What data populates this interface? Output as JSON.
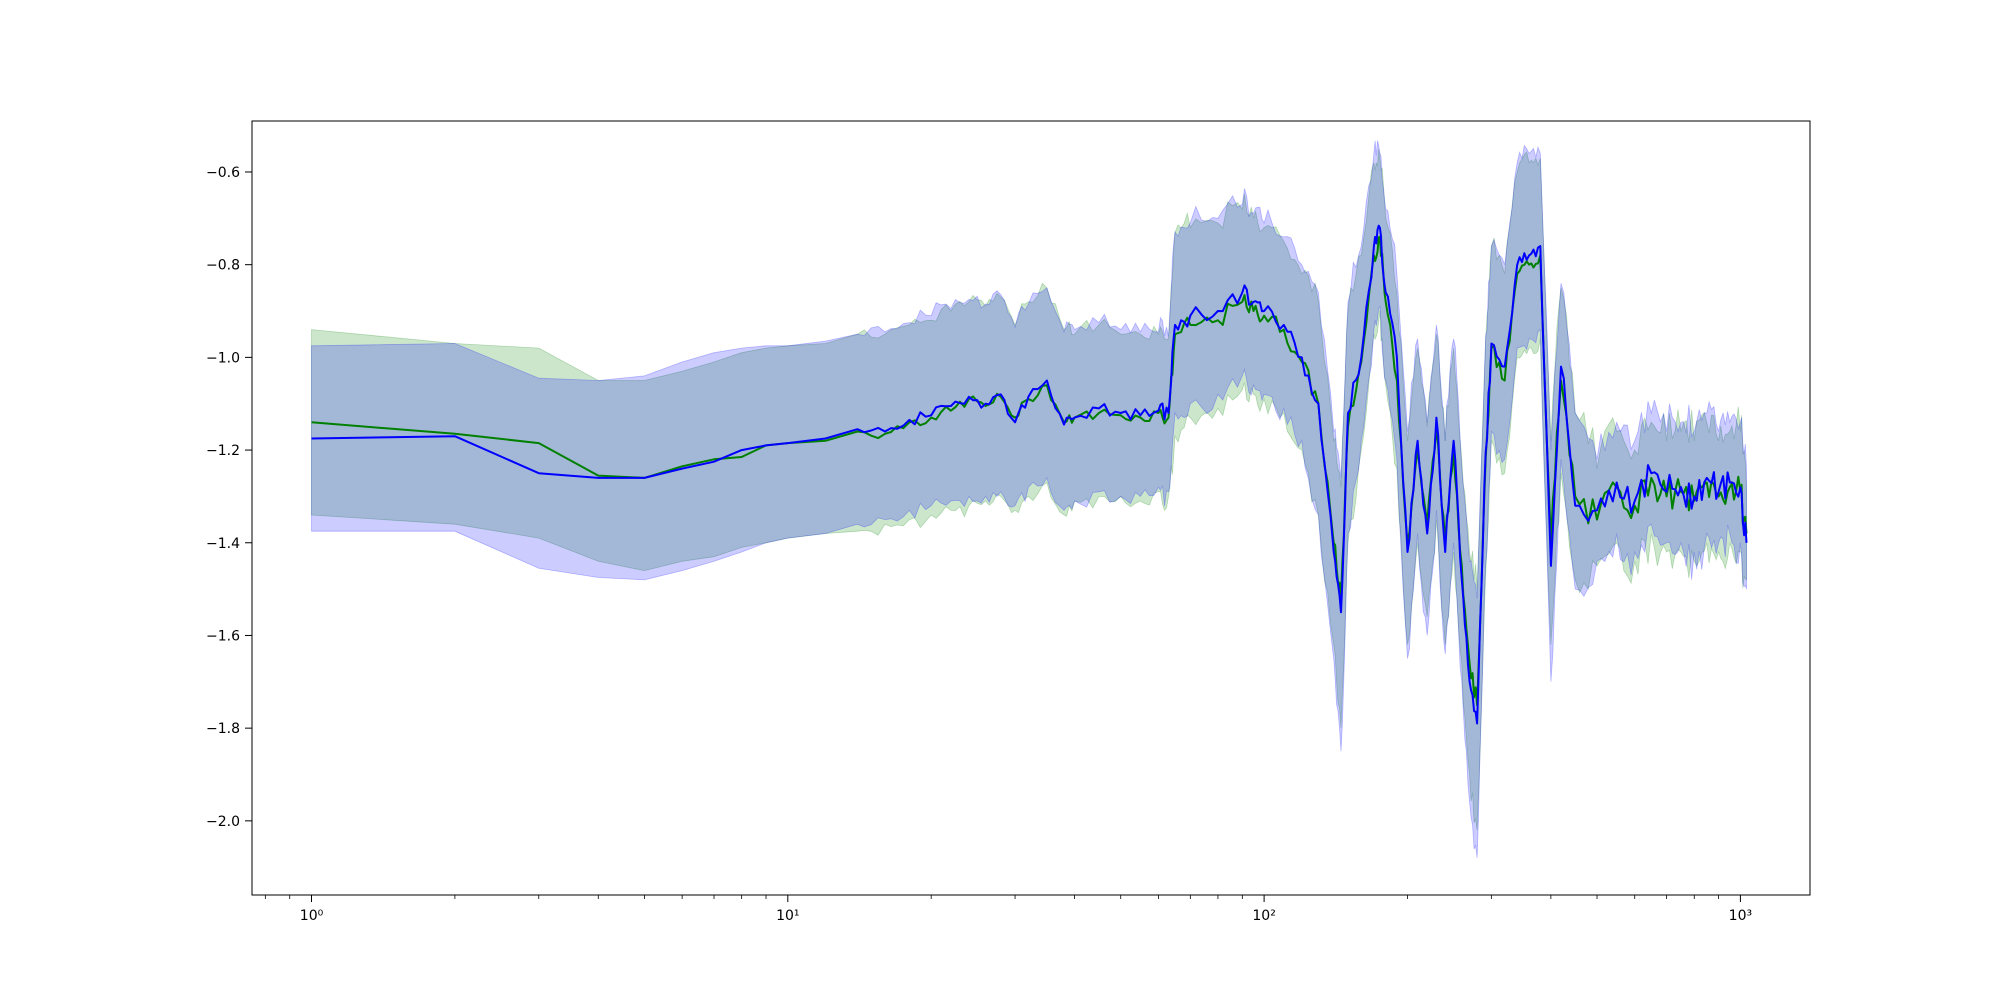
{
  "chart_data": {
    "type": "line",
    "title": "",
    "xlabel": "",
    "ylabel": "",
    "x_scale": "log",
    "xlim": [
      0.75,
      1400
    ],
    "ylim": [
      -2.16,
      -0.49
    ],
    "grid": false,
    "legend": "none",
    "x_major_ticks": [
      {
        "value": 1,
        "label": "10⁰"
      },
      {
        "value": 10,
        "label": "10¹"
      },
      {
        "value": 100,
        "label": "10²"
      },
      {
        "value": 1000,
        "label": "10³"
      }
    ],
    "y_ticks": [
      {
        "value": -0.6,
        "label": "−0.6"
      },
      {
        "value": -0.8,
        "label": "−0.8"
      },
      {
        "value": -1.0,
        "label": "−1.0"
      },
      {
        "value": -1.2,
        "label": "−1.2"
      },
      {
        "value": -1.4,
        "label": "−1.4"
      },
      {
        "value": -1.6,
        "label": "−1.6"
      },
      {
        "value": -1.8,
        "label": "−1.8"
      },
      {
        "value": -2.0,
        "label": "−2.0"
      }
    ],
    "series": [
      {
        "color": "#008000",
        "band_color": "#008000",
        "x": [
          1,
          2,
          3,
          4,
          5,
          6,
          7,
          8,
          9,
          10,
          12,
          14,
          16,
          18,
          20,
          22,
          24,
          26,
          28,
          30,
          32,
          35,
          38,
          40,
          45,
          50,
          55,
          60,
          63,
          65,
          70,
          80,
          90,
          95,
          100,
          110,
          120,
          130,
          140,
          145,
          150,
          160,
          170,
          175,
          180,
          190,
          200,
          210,
          220,
          230,
          240,
          250,
          260,
          270,
          280,
          290,
          300,
          320,
          340,
          360,
          380,
          400,
          420,
          450,
          500,
          550,
          600,
          650,
          700,
          750,
          800,
          850,
          900,
          950,
          1000,
          1030
        ],
        "y": [
          -1.14,
          -1.165,
          -1.185,
          -1.255,
          -1.26,
          -1.235,
          -1.22,
          -1.215,
          -1.19,
          -1.185,
          -1.18,
          -1.16,
          -1.165,
          -1.14,
          -1.13,
          -1.115,
          -1.09,
          -1.105,
          -1.085,
          -1.13,
          -1.09,
          -1.06,
          -1.14,
          -1.13,
          -1.12,
          -1.125,
          -1.13,
          -1.12,
          -1.13,
          -0.95,
          -0.93,
          -0.92,
          -0.88,
          -0.9,
          -0.91,
          -0.94,
          -1.01,
          -1.1,
          -1.4,
          -1.52,
          -1.15,
          -1.01,
          -0.78,
          -0.74,
          -0.88,
          -1.05,
          -1.4,
          -1.2,
          -1.36,
          -1.15,
          -1.4,
          -1.2,
          -1.45,
          -1.66,
          -1.75,
          -1.3,
          -0.98,
          -1.05,
          -0.82,
          -0.8,
          -0.78,
          -1.4,
          -1.05,
          -1.3,
          -1.35,
          -1.28,
          -1.32,
          -1.26,
          -1.3,
          -1.29,
          -1.31,
          -1.27,
          -1.3,
          -1.28,
          -1.29,
          -1.38
        ],
        "lower": [
          -1.34,
          -1.36,
          -1.39,
          -1.44,
          -1.46,
          -1.44,
          -1.43,
          -1.41,
          -1.4,
          -1.39,
          -1.38,
          -1.375,
          -1.36,
          -1.35,
          -1.34,
          -1.33,
          -1.32,
          -1.31,
          -1.3,
          -1.33,
          -1.3,
          -1.27,
          -1.34,
          -1.31,
          -1.3,
          -1.3,
          -1.31,
          -1.29,
          -1.3,
          -1.17,
          -1.13,
          -1.11,
          -1.07,
          -1.08,
          -1.09,
          -1.12,
          -1.2,
          -1.34,
          -1.62,
          -1.8,
          -1.4,
          -1.2,
          -0.95,
          -0.9,
          -1.06,
          -1.24,
          -1.62,
          -1.4,
          -1.56,
          -1.35,
          -1.62,
          -1.42,
          -1.66,
          -1.9,
          -2.02,
          -1.55,
          -1.18,
          -1.25,
          -1.0,
          -0.98,
          -0.96,
          -1.62,
          -1.25,
          -1.48,
          -1.45,
          -1.4,
          -1.44,
          -1.38,
          -1.42,
          -1.42,
          -1.44,
          -1.4,
          -1.42,
          -1.4,
          -1.42,
          -1.48
        ],
        "upper": [
          -0.94,
          -0.97,
          -0.98,
          -1.05,
          -1.05,
          -1.03,
          -1.01,
          -0.99,
          -0.98,
          -0.975,
          -0.97,
          -0.95,
          -0.95,
          -0.93,
          -0.92,
          -0.9,
          -0.88,
          -0.89,
          -0.87,
          -0.93,
          -0.88,
          -0.85,
          -0.94,
          -0.95,
          -0.93,
          -0.95,
          -0.95,
          -0.95,
          -0.96,
          -0.73,
          -0.72,
          -0.71,
          -0.68,
          -0.7,
          -0.72,
          -0.75,
          -0.82,
          -0.88,
          -1.18,
          -1.28,
          -0.9,
          -0.78,
          -0.58,
          -0.57,
          -0.7,
          -0.86,
          -1.18,
          -0.98,
          -1.15,
          -0.95,
          -1.18,
          -0.98,
          -1.22,
          -1.42,
          -1.5,
          -1.05,
          -0.76,
          -0.82,
          -0.6,
          -0.58,
          -0.57,
          -1.18,
          -0.85,
          -1.12,
          -1.24,
          -1.16,
          -1.2,
          -1.14,
          -1.18,
          -1.16,
          -1.18,
          -1.14,
          -1.18,
          -1.16,
          -1.16,
          -1.28
        ]
      },
      {
        "color": "#0000ff",
        "band_color": "#0000ff",
        "x": [
          1,
          2,
          3,
          4,
          5,
          6,
          7,
          8,
          9,
          10,
          12,
          14,
          16,
          18,
          20,
          22,
          24,
          26,
          28,
          30,
          32,
          35,
          38,
          40,
          45,
          50,
          55,
          60,
          63,
          65,
          70,
          80,
          90,
          95,
          100,
          110,
          120,
          130,
          140,
          145,
          150,
          160,
          170,
          175,
          180,
          190,
          200,
          210,
          220,
          230,
          240,
          250,
          260,
          270,
          280,
          290,
          300,
          320,
          340,
          360,
          380,
          400,
          420,
          450,
          500,
          550,
          600,
          650,
          700,
          750,
          800,
          850,
          900,
          950,
          1000,
          1030
        ],
        "y": [
          -1.175,
          -1.17,
          -1.25,
          -1.26,
          -1.26,
          -1.24,
          -1.225,
          -1.2,
          -1.19,
          -1.185,
          -1.175,
          -1.155,
          -1.16,
          -1.135,
          -1.125,
          -1.105,
          -1.085,
          -1.1,
          -1.08,
          -1.14,
          -1.085,
          -1.05,
          -1.145,
          -1.13,
          -1.11,
          -1.12,
          -1.125,
          -1.115,
          -1.12,
          -0.93,
          -0.91,
          -0.9,
          -0.86,
          -0.88,
          -0.9,
          -0.93,
          -1.0,
          -1.1,
          -1.42,
          -1.55,
          -1.12,
          -1.0,
          -0.76,
          -0.72,
          -0.86,
          -1.0,
          -1.42,
          -1.18,
          -1.38,
          -1.13,
          -1.42,
          -1.18,
          -1.48,
          -1.7,
          -1.79,
          -1.28,
          -0.97,
          -1.02,
          -0.8,
          -0.78,
          -0.76,
          -1.45,
          -1.02,
          -1.32,
          -1.33,
          -1.27,
          -1.31,
          -1.25,
          -1.29,
          -1.28,
          -1.3,
          -1.26,
          -1.29,
          -1.27,
          -1.28,
          -1.4
        ],
        "lower": [
          -1.375,
          -1.375,
          -1.455,
          -1.475,
          -1.48,
          -1.46,
          -1.44,
          -1.42,
          -1.4,
          -1.39,
          -1.38,
          -1.36,
          -1.35,
          -1.33,
          -1.32,
          -1.31,
          -1.3,
          -1.3,
          -1.29,
          -1.32,
          -1.28,
          -1.26,
          -1.33,
          -1.31,
          -1.29,
          -1.3,
          -1.3,
          -1.28,
          -1.29,
          -1.12,
          -1.1,
          -1.08,
          -1.04,
          -1.06,
          -1.08,
          -1.11,
          -1.18,
          -1.34,
          -1.65,
          -1.85,
          -1.38,
          -1.18,
          -0.94,
          -0.89,
          -1.05,
          -1.22,
          -1.65,
          -1.38,
          -1.6,
          -1.33,
          -1.64,
          -1.4,
          -1.7,
          -1.96,
          -2.08,
          -1.52,
          -1.16,
          -1.22,
          -0.98,
          -0.96,
          -0.94,
          -1.7,
          -1.22,
          -1.5,
          -1.44,
          -1.38,
          -1.42,
          -1.36,
          -1.4,
          -1.4,
          -1.42,
          -1.38,
          -1.4,
          -1.38,
          -1.4,
          -1.5
        ],
        "upper": [
          -0.975,
          -0.97,
          -1.045,
          -1.05,
          -1.04,
          -1.01,
          -0.99,
          -0.98,
          -0.975,
          -0.975,
          -0.965,
          -0.95,
          -0.945,
          -0.925,
          -0.91,
          -0.895,
          -0.875,
          -0.885,
          -0.865,
          -0.935,
          -0.885,
          -0.85,
          -0.945,
          -0.94,
          -0.925,
          -0.94,
          -0.945,
          -0.945,
          -0.955,
          -0.73,
          -0.71,
          -0.7,
          -0.67,
          -0.69,
          -0.71,
          -0.74,
          -0.8,
          -0.86,
          -1.16,
          -1.26,
          -0.88,
          -0.76,
          -0.56,
          -0.56,
          -0.68,
          -0.82,
          -1.16,
          -0.96,
          -1.14,
          -0.93,
          -1.18,
          -0.96,
          -1.24,
          -1.44,
          -1.52,
          -1.04,
          -0.76,
          -0.8,
          -0.58,
          -0.56,
          -0.56,
          -1.2,
          -0.84,
          -1.12,
          -1.22,
          -1.14,
          -1.18,
          -1.12,
          -1.16,
          -1.14,
          -1.16,
          -1.12,
          -1.16,
          -1.14,
          -1.14,
          -1.24
        ]
      }
    ]
  }
}
